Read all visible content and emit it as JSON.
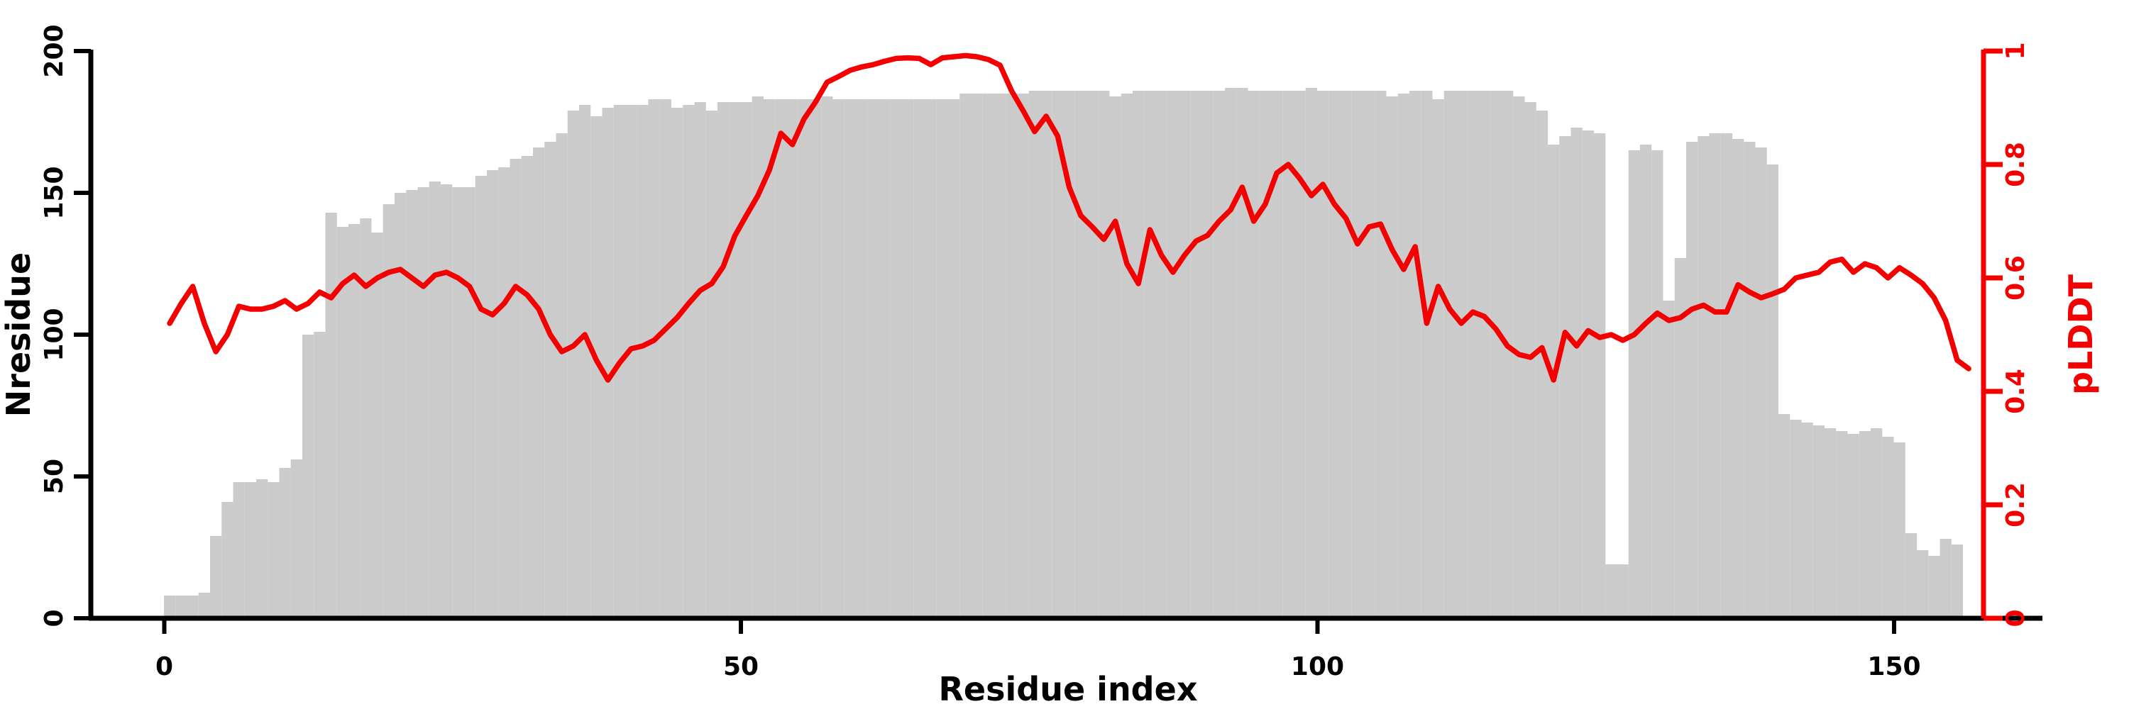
{
  "chart_data": {
    "type": "bar",
    "subtype": "bar-with-line-overlay",
    "title": "",
    "xlabel": "Residue index",
    "x_axis": {
      "ticks": [
        0,
        50,
        100,
        150
      ],
      "range": [
        0,
        157
      ],
      "grid": false
    },
    "y_left": {
      "label": "Nresidue",
      "ticks": [
        0,
        50,
        100,
        150,
        200
      ],
      "range": [
        0,
        200
      ],
      "color": "#000000"
    },
    "y_right": {
      "label": "pLDDT",
      "ticks": [
        0,
        0.2,
        0.4,
        0.6,
        0.8,
        1
      ],
      "tick_labels": [
        "0",
        "0.2",
        "0.4",
        "0.6",
        "0.8",
        "1"
      ],
      "range": [
        0,
        1
      ],
      "color": "#f30000"
    },
    "legend": "none",
    "bar_color": "#cbcbcb",
    "line_color": "#f30000",
    "series": [
      {
        "name": "Nresidue",
        "type": "bar",
        "x_start": 0,
        "values": [
          8,
          8,
          8,
          9,
          29,
          41,
          48,
          48,
          49,
          48,
          53,
          56,
          100,
          101,
          143,
          138,
          139,
          141,
          136,
          146,
          150,
          151,
          152,
          154,
          153,
          152,
          152,
          156,
          158,
          159,
          162,
          163,
          166,
          168,
          171,
          179,
          181,
          177,
          180,
          181,
          181,
          181,
          183,
          183,
          180,
          181,
          182,
          179,
          182,
          182,
          182,
          184,
          183,
          183,
          183,
          183,
          183,
          184,
          183,
          183,
          183,
          183,
          183,
          183,
          183,
          183,
          183,
          183,
          183,
          185,
          185,
          185,
          185,
          185,
          185,
          186,
          186,
          186,
          186,
          186,
          186,
          186,
          184,
          185,
          186,
          186,
          186,
          186,
          186,
          186,
          186,
          186,
          187,
          187,
          186,
          186,
          186,
          186,
          186,
          187,
          186,
          186,
          186,
          186,
          186,
          186,
          184,
          185,
          186,
          186,
          183,
          186,
          186,
          186,
          186,
          186,
          186,
          184,
          182,
          179,
          167,
          170,
          173,
          172,
          171,
          19,
          19,
          165,
          167,
          165,
          112,
          127,
          168,
          170,
          171,
          171,
          169,
          168,
          166,
          160,
          72,
          70,
          69,
          68,
          67,
          66,
          65,
          66,
          67,
          64,
          62,
          30,
          24,
          22,
          28,
          26
        ]
      },
      {
        "name": "pLDDT",
        "type": "line",
        "x_start": 0,
        "values": [
          0.52,
          0.555,
          0.585,
          0.52,
          0.47,
          0.5,
          0.55,
          0.545,
          0.545,
          0.55,
          0.56,
          0.545,
          0.555,
          0.575,
          0.565,
          0.59,
          0.605,
          0.585,
          0.6,
          0.61,
          0.615,
          0.6,
          0.585,
          0.605,
          0.61,
          0.6,
          0.585,
          0.545,
          0.535,
          0.555,
          0.585,
          0.57,
          0.545,
          0.5,
          0.47,
          0.48,
          0.5,
          0.455,
          0.42,
          0.45,
          0.475,
          0.48,
          0.49,
          0.51,
          0.53,
          0.555,
          0.578,
          0.59,
          0.62,
          0.674,
          0.71,
          0.745,
          0.79,
          0.855,
          0.835,
          0.88,
          0.91,
          0.945,
          0.955,
          0.966,
          0.972,
          0.976,
          0.982,
          0.987,
          0.988,
          0.987,
          0.976,
          0.988,
          0.99,
          0.992,
          0.99,
          0.985,
          0.975,
          0.93,
          0.895,
          0.858,
          0.885,
          0.85,
          0.76,
          0.71,
          0.69,
          0.668,
          0.7,
          0.625,
          0.59,
          0.685,
          0.64,
          0.61,
          0.64,
          0.665,
          0.675,
          0.7,
          0.72,
          0.76,
          0.7,
          0.73,
          0.785,
          0.8,
          0.775,
          0.745,
          0.765,
          0.73,
          0.705,
          0.66,
          0.69,
          0.695,
          0.65,
          0.615,
          0.655,
          0.52,
          0.585,
          0.545,
          0.52,
          0.54,
          0.532,
          0.51,
          0.48,
          0.465,
          0.46,
          0.477,
          0.42,
          0.504,
          0.48,
          0.507,
          0.495,
          0.5,
          0.49,
          0.5,
          0.52,
          0.538,
          0.525,
          0.53,
          0.545,
          0.552,
          0.54,
          0.54,
          0.588,
          0.575,
          0.565,
          0.572,
          0.58,
          0.6,
          0.605,
          0.61,
          0.628,
          0.633,
          0.61,
          0.625,
          0.618,
          0.6,
          0.618,
          0.605,
          0.59,
          0.565,
          0.525,
          0.455,
          0.44
        ]
      }
    ]
  }
}
